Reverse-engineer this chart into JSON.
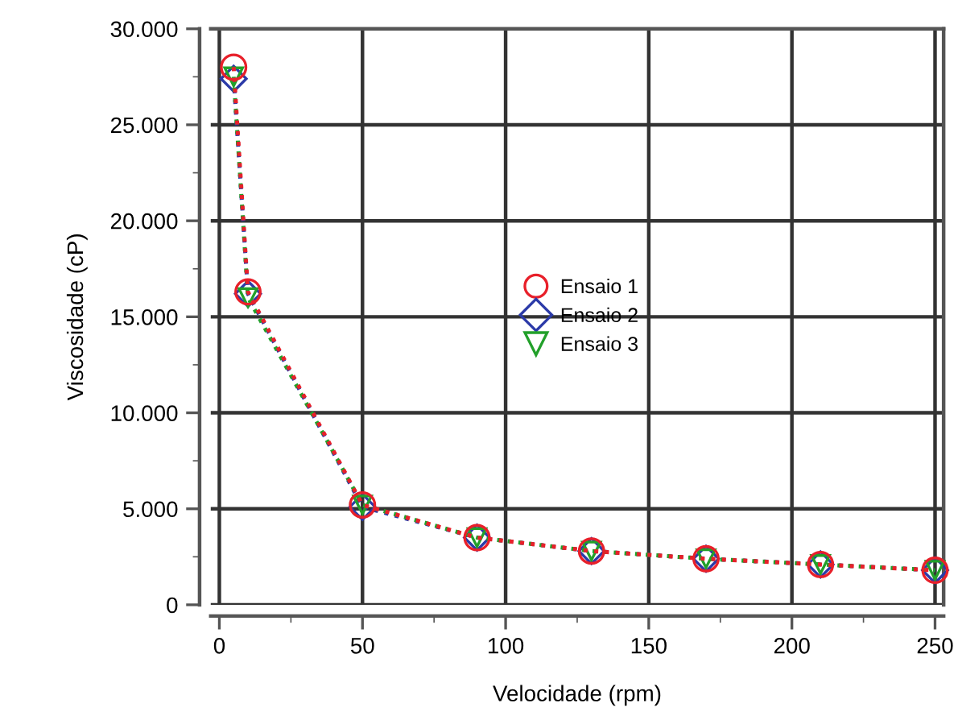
{
  "chart_data": {
    "type": "line",
    "xlabel": "Velocidade (rpm)",
    "ylabel": "Viscosidade (cP)",
    "x": [
      5,
      10,
      50,
      90,
      130,
      170,
      210,
      250
    ],
    "series": [
      {
        "name": "Ensaio 1",
        "color": "#e8202a",
        "marker": "circle",
        "values": [
          28000,
          16300,
          5200,
          3500,
          2800,
          2400,
          2100,
          1800
        ]
      },
      {
        "name": "Ensaio 2",
        "color": "#2b3aa8",
        "marker": "diamond",
        "values": [
          27400,
          16200,
          5100,
          3500,
          2800,
          2400,
          2100,
          1800
        ]
      },
      {
        "name": "Ensaio 3",
        "color": "#22a02a",
        "marker": "triangle",
        "values": [
          27500,
          16000,
          5200,
          3500,
          2800,
          2400,
          2100,
          1800
        ]
      }
    ],
    "line_style": "dotted",
    "xlim": [
      -3,
      253
    ],
    "xticks": [
      0,
      50,
      100,
      150,
      200,
      250
    ],
    "ylim": [
      0,
      30000
    ],
    "yticks": [
      {
        "value": 0,
        "label": "0"
      },
      {
        "value": 5000,
        "label": "5.000"
      },
      {
        "value": 10000,
        "label": "10.000"
      },
      {
        "value": 15000,
        "label": "15.000"
      },
      {
        "value": 20000,
        "label": "20.000"
      },
      {
        "value": 25000,
        "label": "25.000"
      },
      {
        "value": 30000,
        "label": "30.000"
      }
    ],
    "grid": true,
    "legend": "center"
  }
}
